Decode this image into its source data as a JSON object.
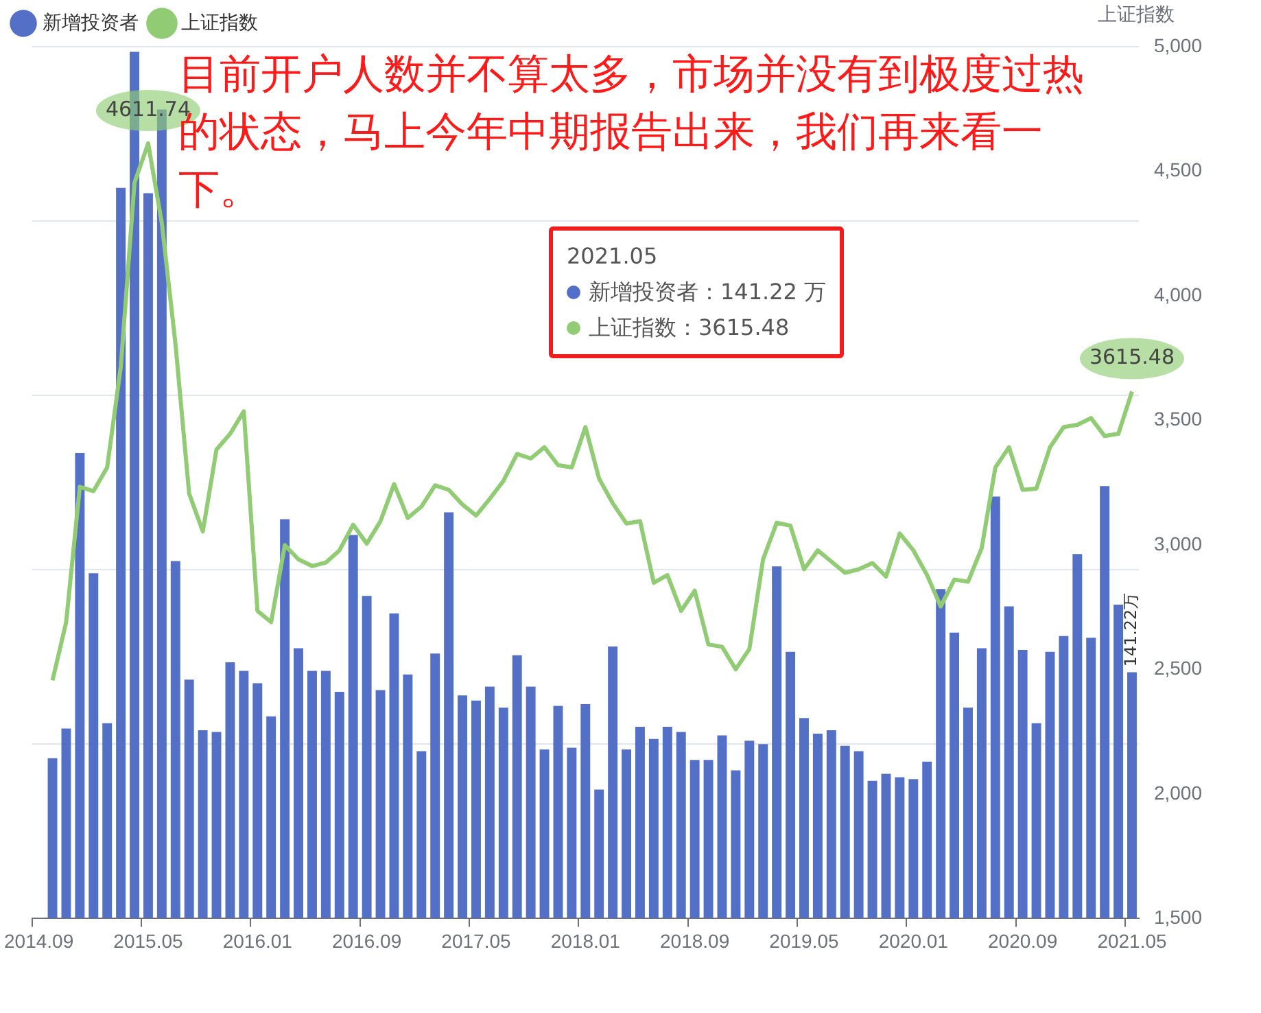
{
  "chart_data": {
    "type": "bar",
    "categories": [
      "2014.09",
      null,
      null,
      null,
      null,
      null,
      null,
      null,
      "2015.05",
      null,
      null,
      null,
      null,
      null,
      null,
      null,
      "2016.01",
      null,
      null,
      null,
      null,
      null,
      null,
      null,
      "2016.09",
      null,
      null,
      null,
      null,
      null,
      null,
      null,
      "2017.05",
      null,
      null,
      null,
      null,
      null,
      null,
      null,
      "2018.01",
      null,
      null,
      null,
      null,
      null,
      null,
      null,
      "2018.09",
      null,
      null,
      null,
      null,
      null,
      null,
      null,
      "2019.05",
      null,
      null,
      null,
      null,
      null,
      null,
      null,
      "2020.01",
      null,
      null,
      null,
      null,
      null,
      null,
      null,
      "2020.09",
      null,
      null,
      null,
      null,
      null,
      null,
      null,
      "2021.05"
    ],
    "series": [
      {
        "name": "新增投资者",
        "color": "#5470c6",
        "values": [
          null,
          92,
          109,
          267,
          198,
          112,
          419,
          497,
          416,
          464,
          205,
          137,
          108,
          107,
          147,
          142,
          135,
          116,
          229,
          155,
          142,
          142,
          130,
          220,
          185,
          131,
          175,
          140,
          96,
          152,
          233,
          128,
          125,
          133,
          121,
          151,
          133,
          97,
          122,
          98,
          123,
          74,
          156,
          97,
          110,
          103,
          110,
          107,
          91,
          91,
          105,
          85,
          102,
          100,
          202,
          153,
          115,
          106,
          108,
          99,
          96,
          79,
          83,
          81,
          80,
          90,
          189,
          164,
          121,
          155,
          242,
          179,
          154,
          112,
          153,
          162,
          209,
          161,
          248,
          180,
          141.22
        ],
        "value_labels": [
          null,
          null,
          null,
          null,
          null,
          null,
          null,
          null,
          null,
          null,
          null,
          null,
          null,
          null,
          null,
          null,
          null,
          null,
          null,
          null,
          null,
          null,
          null,
          null,
          null,
          null,
          null,
          null,
          null,
          null,
          null,
          null,
          null,
          null,
          null,
          null,
          null,
          null,
          null,
          null,
          null,
          null,
          null,
          null,
          null,
          null,
          null,
          null,
          null,
          null,
          null,
          null,
          null,
          null,
          null,
          null,
          null,
          null,
          null,
          null,
          null,
          null,
          null,
          null,
          null,
          null,
          null,
          null,
          null,
          null,
          null,
          null,
          null,
          null,
          null,
          null,
          null,
          null,
          null,
          null,
          "141.22万"
        ]
      },
      {
        "name": "上证指数",
        "type": "line",
        "axis": "y2",
        "color": "#91cc75",
        "values": [
          null,
          2456,
          2690,
          3233,
          3216,
          3311,
          3716,
          4454,
          4611.74,
          4292,
          3806,
          3206,
          3054,
          3383,
          3446,
          3536,
          2735,
          2690,
          2999,
          2942,
          2915,
          2929,
          2978,
          3081,
          3005,
          3095,
          3244,
          3108,
          3154,
          3239,
          3221,
          3162,
          3118,
          3185,
          3257,
          3365,
          3347,
          3392,
          3320,
          3311,
          3473,
          3266,
          3167,
          3086,
          3095,
          2848,
          2879,
          2735,
          2816,
          2600,
          2591,
          2501,
          2582,
          2942,
          3089,
          3077,
          2902,
          2978,
          2933,
          2888,
          2902,
          2927,
          2873,
          3046,
          2978,
          2879,
          2753,
          2861,
          2852,
          2987,
          3311,
          3392,
          3221,
          3226,
          3392,
          3473,
          3482,
          3509,
          3437,
          3446,
          3615.48
        ],
        "value_labels": [
          null,
          null,
          null,
          null,
          null,
          null,
          null,
          null,
          "4611.74",
          null,
          null,
          null,
          null,
          null,
          null,
          null,
          null,
          null,
          null,
          null,
          null,
          null,
          null,
          null,
          null,
          null,
          null,
          null,
          null,
          null,
          null,
          null,
          null,
          null,
          null,
          null,
          null,
          null,
          null,
          null,
          null,
          null,
          null,
          null,
          null,
          null,
          null,
          null,
          null,
          null,
          null,
          null,
          null,
          null,
          null,
          null,
          null,
          null,
          null,
          null,
          null,
          null,
          null,
          null,
          null,
          null,
          null,
          null,
          null,
          null,
          null,
          null,
          null,
          null,
          null,
          null,
          null,
          null,
          null,
          null,
          "3615.48"
        ]
      }
    ],
    "ylim": [
      0,
      500
    ],
    "yticks": [
      {
        "value": 0,
        "label": null
      },
      {
        "value": 100,
        "label": null
      },
      {
        "value": 200,
        "label": null
      },
      {
        "value": 300,
        "label": null
      },
      {
        "value": 400,
        "label": null
      },
      {
        "value": 500,
        "label": null
      }
    ],
    "y2lim": [
      1500,
      5000
    ],
    "y2ticks": [
      {
        "value": 1500,
        "label": "1,500"
      },
      {
        "value": 2000,
        "label": "2,000"
      },
      {
        "value": 2500,
        "label": "2,500"
      },
      {
        "value": 3000,
        "label": "3,000"
      },
      {
        "value": 3500,
        "label": "3,500"
      },
      {
        "value": 4000,
        "label": "4,000"
      },
      {
        "value": 4500,
        "label": "4,500"
      },
      {
        "value": 5000,
        "label": "5,000"
      }
    ],
    "y2label": "上证指数",
    "grid": "y",
    "legend": "top left",
    "marker": "none",
    "annotations": [
      "目前开户人数并不算太多，市场并没有到极度过热的状态，马上今年中期报告出来，我们再来看一下。",
      "2021.05",
      "新增投资者：141.22 万",
      "上证指数：3615.48"
    ]
  }
}
